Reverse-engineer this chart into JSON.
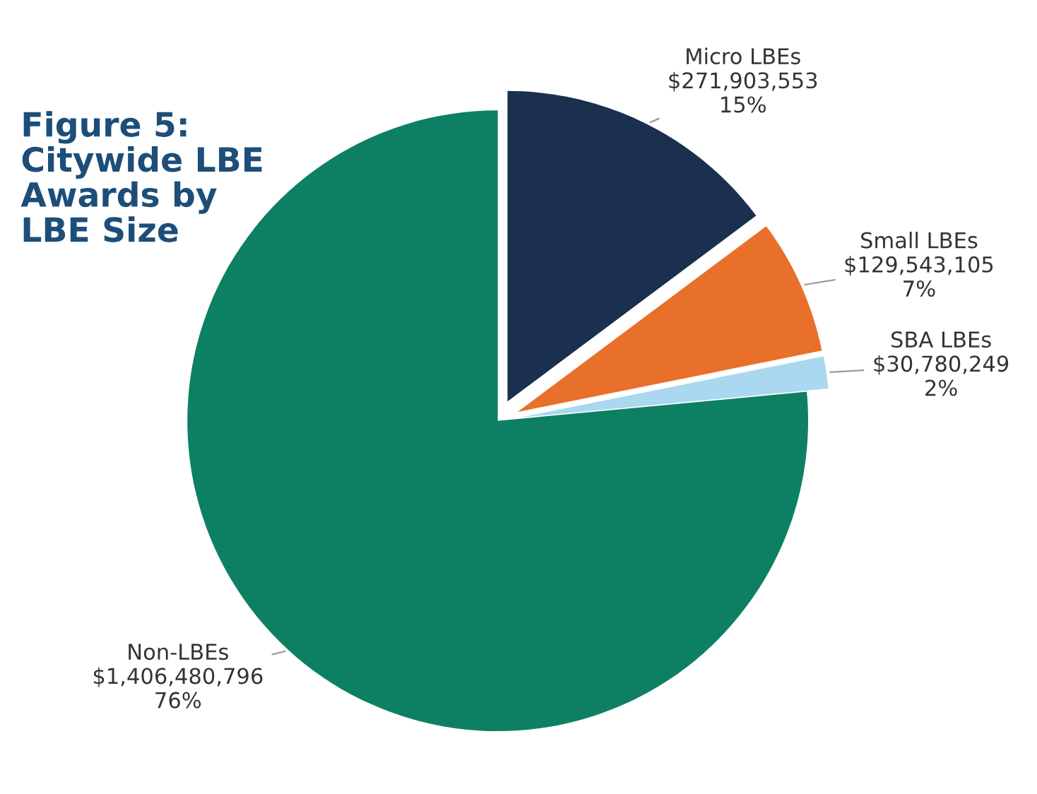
{
  "chart_data": {
    "type": "pie",
    "title": "Figure 5:\nCitywide LBE\nAwards by\nLBE Size",
    "categories": [
      "Micro LBEs",
      "Small LBEs",
      "SBA LBEs",
      "Non-LBEs"
    ],
    "values": [
      271903553,
      129543105,
      30780249,
      1406480796
    ],
    "colors": [
      "#1b2f4f",
      "#e8702a",
      "#a9d8f0",
      "#0d8063"
    ],
    "value_labels": [
      "$271,903,553\n15%",
      "$129,543,105\n7%",
      "$30,780,249\n2%",
      "$1,406,480,796\n76%"
    ],
    "legend": false
  }
}
